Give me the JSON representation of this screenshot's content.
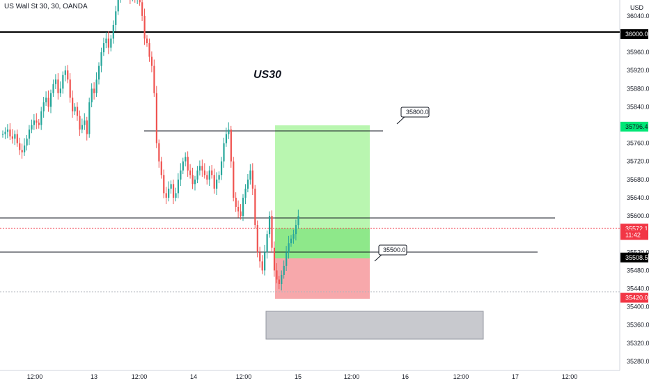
{
  "header": {
    "title": "US Wall St 30, 30, OANDA"
  },
  "axis": {
    "currency": "USD"
  },
  "chart_data": {
    "type": "candlestick",
    "title": "US30",
    "ylim": [
      35260,
      36075
    ],
    "y_ticks": [
      "36040.0",
      "35960.0",
      "35920.0",
      "35880.0",
      "35840.0",
      "35760.0",
      "35720.0",
      "35680.0",
      "35640.0",
      "35600.0",
      "35520.0",
      "35480.0",
      "35440.0",
      "35400.0",
      "35360.0",
      "35320.0",
      "35280.0"
    ],
    "x_ticks": [
      "12:00",
      "13",
      "12:00",
      "14",
      "12:00",
      "15",
      "12:00",
      "16",
      "12:00",
      "17",
      "12:00"
    ],
    "horizontal_levels": [
      36000,
      35600,
      35520
    ],
    "resistance_line": 35795,
    "position": {
      "entry": 35500,
      "target": 35796.4,
      "stop": 35420
    },
    "price_badges": [
      {
        "text": "36000.0",
        "value": 36000,
        "color": "#000000"
      },
      {
        "text": "35796.4",
        "value": 35796.4,
        "color": "#00e676"
      },
      {
        "text": "35572.1",
        "value": 35572.1,
        "color": "#f23645"
      },
      {
        "text": "11:42",
        "value": 35558,
        "color": "#f23645"
      },
      {
        "text": "35508.5",
        "value": 35508.5,
        "color": "#000000"
      },
      {
        "text": "35420.0",
        "value": 35420,
        "color": "#f23645"
      }
    ],
    "callouts": [
      {
        "text": "35800.0"
      },
      {
        "text": "35500.0"
      }
    ],
    "candle_closes": [
      35780,
      35785,
      35790,
      35775,
      35770,
      35780,
      35760,
      35745,
      35740,
      35755,
      35770,
      35790,
      35800,
      35810,
      35805,
      35800,
      35830,
      35850,
      35860,
      35840,
      35870,
      35890,
      35900,
      35870,
      35880,
      35910,
      35920,
      35900,
      35860,
      35830,
      35840,
      35820,
      35790,
      35800,
      35810,
      35780,
      35850,
      35880,
      35870,
      35900,
      35930,
      35960,
      35980,
      35990,
      35970,
      35990,
      36020,
      36050,
      36080,
      36110,
      36100,
      36120,
      36090,
      36080,
      36100,
      36080,
      36110,
      36070,
      36040,
      35990,
      35980,
      35950,
      35930,
      35870,
      35760,
      35720,
      35690,
      35650,
      35640,
      35660,
      35670,
      35640,
      35650,
      35680,
      35700,
      35720,
      35730,
      35700,
      35690,
      35670,
      35680,
      35700,
      35710,
      35700,
      35690,
      35680,
      35700,
      35690,
      35660,
      35680,
      35690,
      35720,
      35760,
      35780,
      35790,
      35720,
      35640,
      35620,
      35610,
      35600,
      35640,
      35660,
      35680,
      35700,
      35660,
      35580,
      35520,
      35500,
      35480,
      35520,
      35560,
      35600,
      35530,
      35480,
      35460,
      35450,
      35470,
      35490,
      35520,
      35540,
      35550,
      35560,
      35580,
      35600
    ],
    "support_zone": [
      35340,
      35400
    ]
  }
}
